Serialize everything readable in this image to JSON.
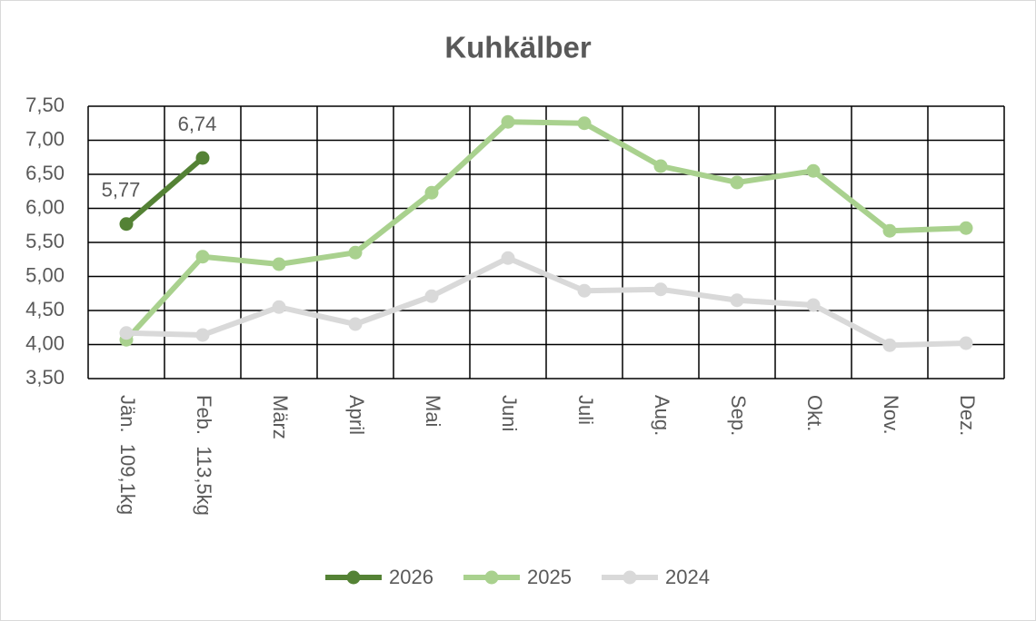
{
  "chart_data": {
    "type": "line",
    "title": "Kuhkälber",
    "categories": [
      "Jän.  109,1kg",
      "Feb.  113,5kg",
      "März",
      "April",
      "Mai",
      "Juni",
      "Juli",
      "Aug.",
      "Sep.",
      "Okt.",
      "Nov.",
      "Dez."
    ],
    "series": [
      {
        "name": "2026",
        "color": "#548235",
        "values": [
          5.77,
          6.74,
          null,
          null,
          null,
          null,
          null,
          null,
          null,
          null,
          null,
          null
        ],
        "value_labels": [
          "5,77",
          "6,74",
          null,
          null,
          null,
          null,
          null,
          null,
          null,
          null,
          null,
          null
        ]
      },
      {
        "name": "2025",
        "color": "#a9d18e",
        "values": [
          4.07,
          5.29,
          5.18,
          5.35,
          6.23,
          7.27,
          7.25,
          6.62,
          6.38,
          6.55,
          5.67,
          5.71
        ]
      },
      {
        "name": "2024",
        "color": "#d9d9d9",
        "values": [
          4.17,
          4.14,
          4.55,
          4.3,
          4.71,
          5.27,
          4.79,
          4.81,
          4.65,
          4.58,
          3.99,
          4.02
        ]
      }
    ],
    "ylim": [
      3.5,
      7.5
    ],
    "yticks": [
      {
        "value": 3.5,
        "label": "3,50"
      },
      {
        "value": 4.0,
        "label": "4,00"
      },
      {
        "value": 4.5,
        "label": "4,50"
      },
      {
        "value": 5.0,
        "label": "5,00"
      },
      {
        "value": 5.5,
        "label": "5,50"
      },
      {
        "value": 6.0,
        "label": "6,00"
      },
      {
        "value": 6.5,
        "label": "6,50"
      },
      {
        "value": 7.0,
        "label": "7,00"
      },
      {
        "value": 7.5,
        "label": "7,50"
      }
    ],
    "grid": true,
    "legend": "bottom"
  }
}
